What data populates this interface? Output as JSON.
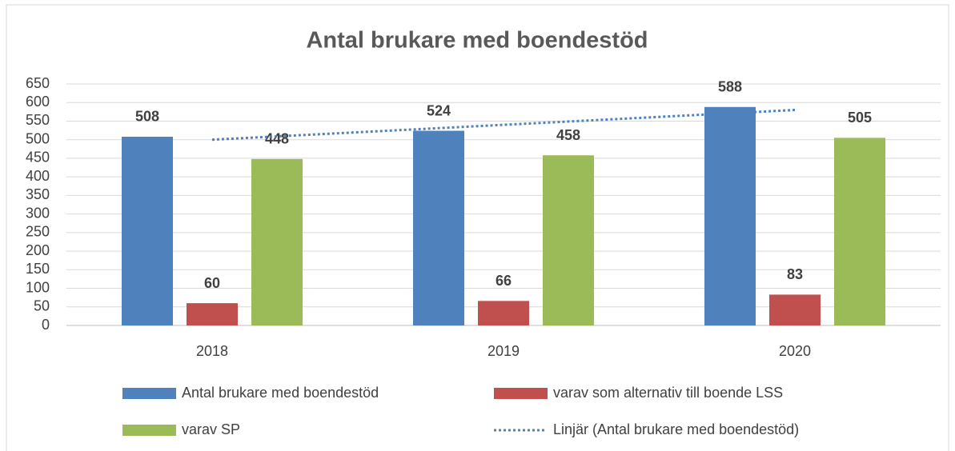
{
  "chart_data": {
    "type": "bar",
    "title": "Antal brukare med boendestöd",
    "categories": [
      "2018",
      "2019",
      "2020"
    ],
    "series": [
      {
        "name": "Antal brukare med boendestöd",
        "color": "#4f81bd",
        "values": [
          508,
          524,
          588
        ]
      },
      {
        "name": "varav som alternativ till boende LSS",
        "color": "#c0504d",
        "values": [
          60,
          66,
          83
        ]
      },
      {
        "name": "varav SP",
        "color": "#9bbb59",
        "values": [
          448,
          458,
          505
        ]
      },
      {
        "name": "Linjär (Antal brukare med boendestöd)",
        "color": "#4f81bd",
        "type": "line",
        "dash": "dot",
        "values": [
          500,
          540,
          580
        ]
      }
    ],
    "ylim": [
      0,
      650
    ],
    "yticks": [
      0,
      50,
      100,
      150,
      200,
      250,
      300,
      350,
      400,
      450,
      500,
      550,
      600,
      650
    ],
    "grid": true
  }
}
